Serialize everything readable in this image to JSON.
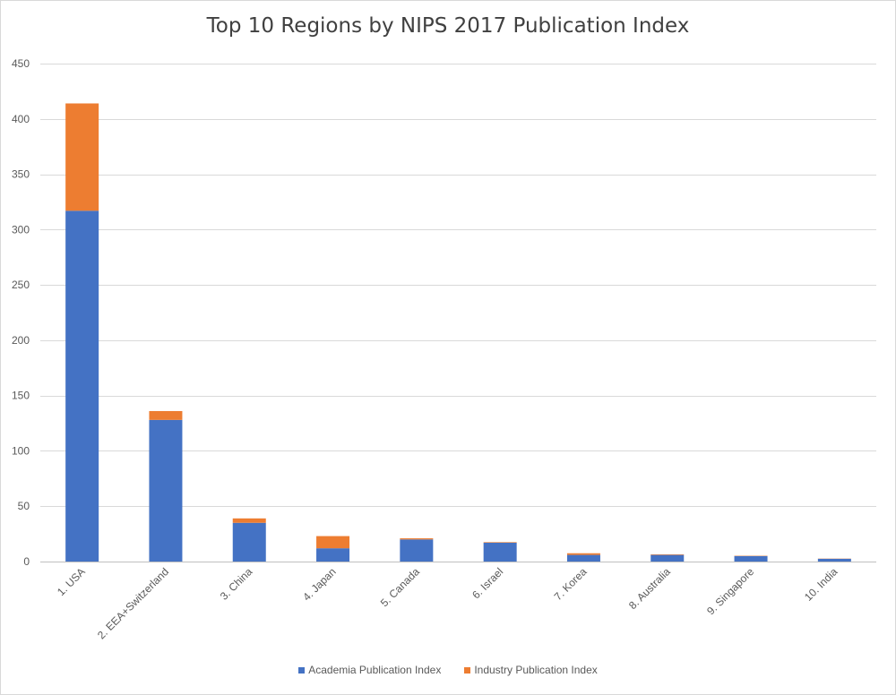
{
  "chart_data": {
    "type": "bar",
    "stacked": true,
    "title": "Top 10 Regions by NIPS 2017 Publication Index",
    "xlabel": "",
    "ylabel": "",
    "ylim": [
      0,
      450
    ],
    "yticks": [
      0,
      50,
      100,
      150,
      200,
      250,
      300,
      350,
      400,
      450
    ],
    "grid": true,
    "legend_position": "bottom",
    "categories": [
      "1. USA",
      "2. EEA+Switzerland",
      "3. China",
      "4. Japan",
      "5. Canada",
      "6. Israel",
      "7. Korea",
      "8. Australia",
      "9. Singapore",
      "10. India"
    ],
    "series": [
      {
        "name": "Academia Publication Index",
        "color": "#4472c4",
        "values": [
          317,
          128,
          35,
          12,
          20,
          17,
          6,
          6,
          5,
          2.5
        ]
      },
      {
        "name": "Industry Publication Index",
        "color": "#ed7d31",
        "values": [
          97,
          8,
          4,
          11,
          1,
          0.5,
          1.5,
          0.5,
          0.3,
          0.2
        ]
      }
    ]
  }
}
